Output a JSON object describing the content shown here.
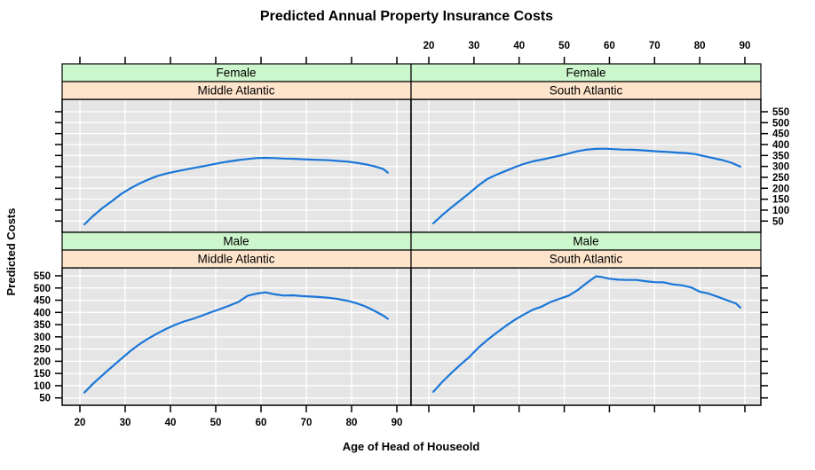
{
  "title": "Predicted Annual Property Insurance Costs",
  "x_axis": {
    "label": "Age of Head of Houseold",
    "ticks": [
      20,
      30,
      40,
      50,
      60,
      70,
      80,
      90
    ]
  },
  "y_axis": {
    "label": "Predicted Costs",
    "ticks": [
      50,
      100,
      150,
      200,
      250,
      300,
      350,
      400,
      450,
      500,
      550
    ]
  },
  "colors": {
    "line": "#1976D8",
    "panel_bg": "#E5E5E5",
    "grid": "#FFFFFF",
    "strip_sex_bg": "#CCF6CC",
    "strip_region_bg": "#FFE4CC",
    "border": "#000000"
  },
  "chart_data": {
    "type": "line",
    "layout": "2x2-trellis",
    "x_range": [
      16,
      94
    ],
    "y_range": [
      25,
      575
    ],
    "grid": "on",
    "axis_label_sides": "alternating",
    "panels": [
      {
        "sex": "Female",
        "region": "Middle Atlantic",
        "row": 0,
        "col": 0,
        "points": [
          [
            21,
            35
          ],
          [
            23,
            75
          ],
          [
            25,
            110
          ],
          [
            27,
            140
          ],
          [
            29,
            172
          ],
          [
            31,
            198
          ],
          [
            33,
            220
          ],
          [
            35,
            239
          ],
          [
            37,
            255
          ],
          [
            39,
            267
          ],
          [
            41,
            276
          ],
          [
            43,
            284
          ],
          [
            45,
            292
          ],
          [
            47,
            300
          ],
          [
            49,
            308
          ],
          [
            51,
            316
          ],
          [
            53,
            323
          ],
          [
            55,
            329
          ],
          [
            57,
            334
          ],
          [
            59,
            338
          ],
          [
            61,
            339
          ],
          [
            63,
            338
          ],
          [
            65,
            336
          ],
          [
            67,
            335
          ],
          [
            69,
            333
          ],
          [
            71,
            331
          ],
          [
            73,
            330
          ],
          [
            75,
            328
          ],
          [
            77,
            325
          ],
          [
            79,
            322
          ],
          [
            81,
            317
          ],
          [
            83,
            310
          ],
          [
            85,
            301
          ],
          [
            87,
            288
          ],
          [
            88,
            272
          ]
        ]
      },
      {
        "sex": "Female",
        "region": "South Atlantic",
        "row": 0,
        "col": 1,
        "points": [
          [
            21,
            40
          ],
          [
            23,
            78
          ],
          [
            25,
            112
          ],
          [
            27,
            145
          ],
          [
            29,
            178
          ],
          [
            31,
            213
          ],
          [
            33,
            243
          ],
          [
            35,
            262
          ],
          [
            37,
            279
          ],
          [
            39,
            296
          ],
          [
            41,
            311
          ],
          [
            43,
            323
          ],
          [
            45,
            331
          ],
          [
            47,
            340
          ],
          [
            49,
            349
          ],
          [
            51,
            359
          ],
          [
            53,
            370
          ],
          [
            55,
            377
          ],
          [
            57,
            380
          ],
          [
            59,
            381
          ],
          [
            61,
            379
          ],
          [
            63,
            377
          ],
          [
            65,
            376
          ],
          [
            67,
            374
          ],
          [
            69,
            371
          ],
          [
            71,
            368
          ],
          [
            73,
            366
          ],
          [
            75,
            363
          ],
          [
            77,
            361
          ],
          [
            79,
            356
          ],
          [
            81,
            347
          ],
          [
            83,
            338
          ],
          [
            85,
            329
          ],
          [
            87,
            317
          ],
          [
            89,
            299
          ]
        ]
      },
      {
        "sex": "Male",
        "region": "Middle Atlantic",
        "row": 1,
        "col": 0,
        "points": [
          [
            21,
            72
          ],
          [
            23,
            110
          ],
          [
            25,
            143
          ],
          [
            27,
            176
          ],
          [
            29,
            208
          ],
          [
            31,
            240
          ],
          [
            33,
            268
          ],
          [
            35,
            292
          ],
          [
            37,
            313
          ],
          [
            39,
            332
          ],
          [
            41,
            349
          ],
          [
            43,
            363
          ],
          [
            45,
            374
          ],
          [
            47,
            387
          ],
          [
            49,
            401
          ],
          [
            51,
            414
          ],
          [
            53,
            428
          ],
          [
            55,
            443
          ],
          [
            57,
            468
          ],
          [
            59,
            477
          ],
          [
            61,
            482
          ],
          [
            63,
            474
          ],
          [
            65,
            469
          ],
          [
            67,
            470
          ],
          [
            69,
            467
          ],
          [
            71,
            465
          ],
          [
            73,
            463
          ],
          [
            75,
            460
          ],
          [
            77,
            455
          ],
          [
            79,
            448
          ],
          [
            81,
            438
          ],
          [
            83,
            425
          ],
          [
            85,
            407
          ],
          [
            87,
            387
          ],
          [
            88,
            374
          ]
        ]
      },
      {
        "sex": "Male",
        "region": "South Atlantic",
        "row": 1,
        "col": 1,
        "points": [
          [
            21,
            75
          ],
          [
            23,
            116
          ],
          [
            25,
            152
          ],
          [
            27,
            186
          ],
          [
            29,
            218
          ],
          [
            31,
            256
          ],
          [
            33,
            288
          ],
          [
            35,
            317
          ],
          [
            37,
            344
          ],
          [
            39,
            369
          ],
          [
            41,
            391
          ],
          [
            43,
            411
          ],
          [
            45,
            424
          ],
          [
            47,
            443
          ],
          [
            49,
            456
          ],
          [
            51,
            469
          ],
          [
            53,
            492
          ],
          [
            55,
            521
          ],
          [
            57,
            548
          ],
          [
            58,
            546
          ],
          [
            59,
            542
          ],
          [
            60,
            538
          ],
          [
            62,
            534
          ],
          [
            64,
            533
          ],
          [
            66,
            533
          ],
          [
            68,
            528
          ],
          [
            70,
            524
          ],
          [
            72,
            523
          ],
          [
            74,
            515
          ],
          [
            76,
            511
          ],
          [
            78,
            503
          ],
          [
            80,
            485
          ],
          [
            82,
            477
          ],
          [
            84,
            464
          ],
          [
            86,
            450
          ],
          [
            88,
            437
          ],
          [
            89,
            420
          ]
        ]
      }
    ]
  }
}
